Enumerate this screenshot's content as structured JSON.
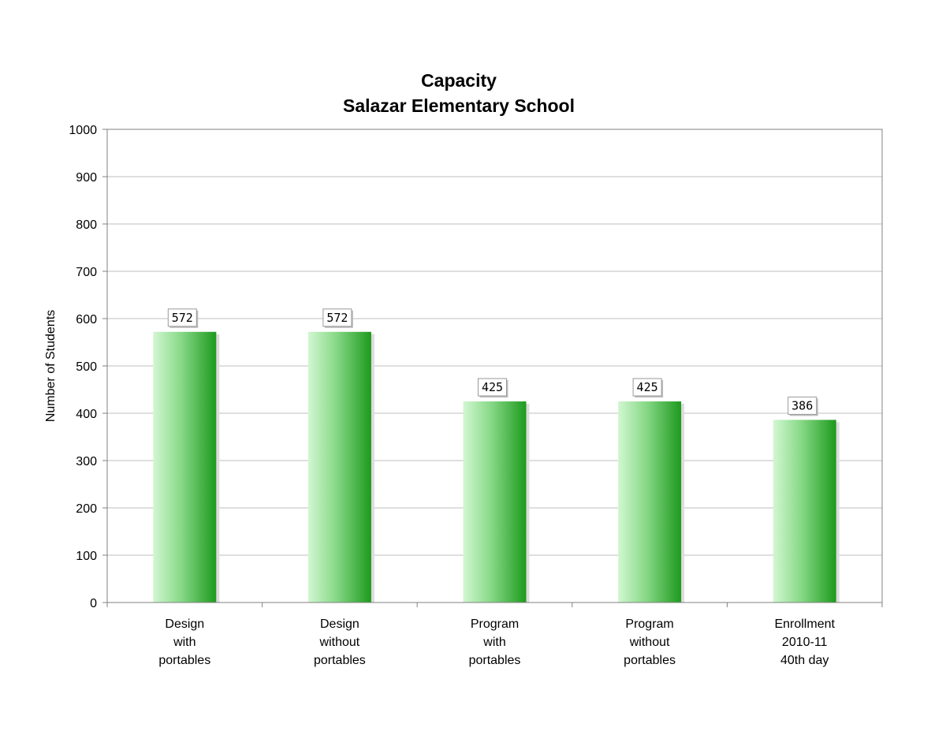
{
  "chart_data": {
    "type": "bar",
    "title": [
      "Capacity",
      "Salazar Elementary School"
    ],
    "xlabel": "",
    "ylabel": "Number of Students",
    "categories": [
      [
        "Design",
        "with",
        "portables"
      ],
      [
        "Design",
        "without",
        "portables"
      ],
      [
        "Program",
        "with",
        "portables"
      ],
      [
        "Program",
        "without",
        "portables"
      ],
      [
        "Enrollment",
        "2010-11",
        "40th day"
      ]
    ],
    "values": [
      572,
      572,
      425,
      425,
      386
    ],
    "data_labels": [
      "572",
      "572",
      "425",
      "425",
      "386"
    ],
    "ylim": [
      0,
      1000
    ],
    "yticks": [
      0,
      100,
      200,
      300,
      400,
      500,
      600,
      700,
      800,
      900,
      1000
    ],
    "ytick_labels": [
      "0",
      "100",
      "200",
      "300",
      "400",
      "500",
      "600",
      "700",
      "800",
      "900",
      "1000"
    ],
    "grid": true,
    "legend": "none",
    "colors": {
      "bar_light": "#d2f7d2",
      "bar_mid": "#86d886",
      "bar_dark": "#1d9a1d",
      "bar_shadow": "#dcdcdc",
      "grid": "#bfbfbf",
      "axis": "#808080"
    }
  }
}
